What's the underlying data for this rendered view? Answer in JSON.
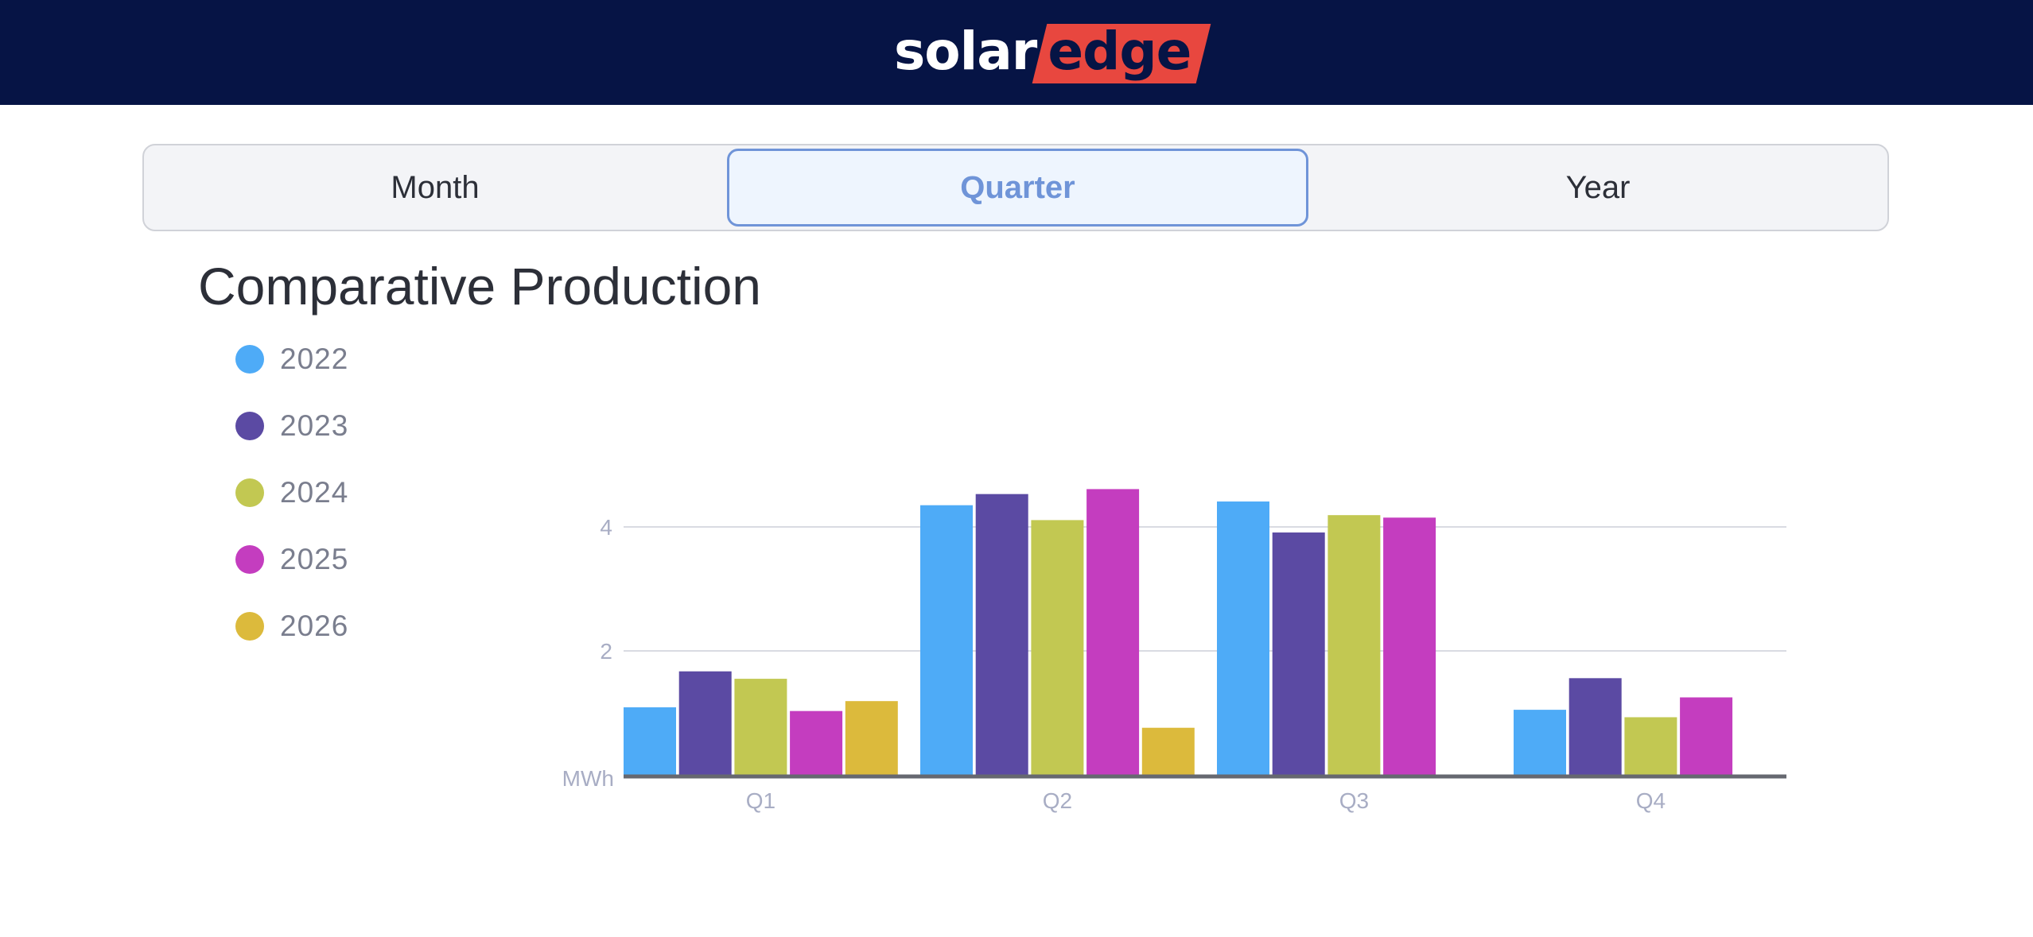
{
  "header": {
    "logo_text": "solaredge",
    "logo_part1": "solar",
    "logo_part2": "edge"
  },
  "tabs": [
    {
      "label": "Month",
      "active": false
    },
    {
      "label": "Quarter",
      "active": true
    },
    {
      "label": "Year",
      "active": false
    }
  ],
  "colors": {
    "header_bg": "#061445",
    "accent": "#6f94d8",
    "logo_red": "#e8473f"
  },
  "chart_data": {
    "type": "bar",
    "title": "Comparative Production",
    "ylabel": "MWh",
    "categories": [
      "Q1",
      "Q2",
      "Q3",
      "Q4"
    ],
    "yticks": [
      2,
      4
    ],
    "ylim": [
      0,
      4.8
    ],
    "grid": true,
    "legend_placement": "left",
    "series": [
      {
        "name": "2022",
        "color": "#4eabf7",
        "values": [
          1.09,
          4.35,
          4.41,
          1.05
        ]
      },
      {
        "name": "2023",
        "color": "#5b4aa3",
        "values": [
          1.67,
          4.53,
          3.91,
          1.56
        ]
      },
      {
        "name": "2024",
        "color": "#c2c852",
        "values": [
          1.55,
          4.11,
          4.19,
          0.93
        ]
      },
      {
        "name": "2025",
        "color": "#c43dbf",
        "values": [
          1.03,
          4.61,
          4.15,
          1.25
        ]
      },
      {
        "name": "2026",
        "color": "#dcba3c",
        "values": [
          1.19,
          0.76,
          null,
          null
        ]
      }
    ]
  }
}
